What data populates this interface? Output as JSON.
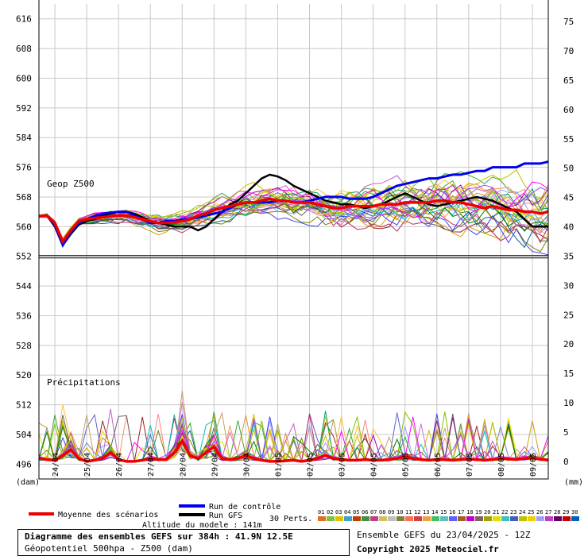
{
  "chart_data": {
    "type": "line",
    "left_axis": {
      "unit": "(dam)",
      "ticks": [
        616,
        608,
        600,
        592,
        584,
        576,
        568,
        560,
        552,
        544,
        536,
        528,
        520,
        512,
        504,
        496
      ],
      "range": [
        492,
        620
      ]
    },
    "right_axis": {
      "unit": "(mm)",
      "ticks": [
        75,
        70,
        65,
        60,
        55,
        50,
        45,
        40,
        35,
        30,
        25,
        20,
        15,
        10,
        5,
        0
      ],
      "range": [
        -3,
        78
      ]
    },
    "x_ticks": [
      "24/04",
      "25/04",
      "26/04",
      "27/04",
      "28/04",
      "29/04",
      "30/04",
      "01/05",
      "02/05",
      "03/05",
      "04/05",
      "05/05",
      "06/05",
      "07/05",
      "08/05",
      "09/05"
    ],
    "x_range_hours": [
      0,
      384
    ],
    "panel_labels": {
      "geop": "Geop Z500",
      "precip": "Précipitations"
    },
    "mean_series": {
      "name": "Moyenne des scénarios",
      "color": "#ee0000",
      "hours": [
        0,
        6,
        12,
        18,
        24,
        30,
        36,
        42,
        48,
        54,
        60,
        66,
        72,
        78,
        84,
        90,
        96,
        102,
        108,
        114,
        120,
        126,
        132,
        138,
        144,
        150,
        156,
        162,
        168,
        174,
        180,
        186,
        192,
        198,
        204,
        210,
        216,
        222,
        228,
        234,
        240,
        246,
        252,
        258,
        264,
        270,
        276,
        282,
        288,
        294,
        300,
        306,
        312,
        318,
        324,
        330,
        336,
        342,
        348,
        354,
        360,
        366,
        372,
        378,
        384
      ],
      "z500": [
        562.8,
        563,
        561,
        556,
        559,
        561.5,
        562,
        562.3,
        562.5,
        562.8,
        563,
        563,
        562.5,
        562,
        561.5,
        561,
        561,
        561.2,
        561.5,
        562,
        563,
        563.5,
        564.5,
        565,
        565.5,
        566,
        566.5,
        566.5,
        567,
        567.5,
        567,
        567,
        566.5,
        566.5,
        566.5,
        566,
        565.5,
        565,
        565,
        565.5,
        565.5,
        565.5,
        565.5,
        566,
        566,
        566,
        566.5,
        566.5,
        566.5,
        566.5,
        567,
        567,
        566.5,
        566.5,
        566,
        565.5,
        565,
        565.5,
        565,
        564.5,
        564.5,
        564,
        564,
        563.5,
        564
      ]
    },
    "control_series": {
      "name": "Run de contrôle",
      "color": "#0000ee",
      "hours": [
        0,
        6,
        12,
        18,
        24,
        30,
        36,
        42,
        48,
        54,
        60,
        66,
        72,
        78,
        84,
        90,
        96,
        102,
        108,
        114,
        120,
        126,
        132,
        138,
        144,
        150,
        156,
        162,
        168,
        174,
        180,
        186,
        192,
        198,
        204,
        210,
        216,
        222,
        228,
        234,
        240,
        246,
        252,
        258,
        264,
        270,
        276,
        282,
        288,
        294,
        300,
        306,
        312,
        318,
        324,
        330,
        336,
        342,
        348,
        354,
        360,
        366,
        372,
        378,
        384
      ],
      "z500": [
        562.8,
        563,
        560.5,
        555,
        558.5,
        561,
        562,
        562.8,
        563.5,
        563.8,
        564,
        564,
        563,
        562,
        561,
        561,
        561.5,
        561.5,
        562,
        562,
        562.5,
        563,
        563.5,
        564,
        565,
        566,
        566.5,
        566.5,
        566.5,
        566.5,
        567,
        567,
        566.5,
        566.5,
        567,
        567.5,
        568,
        568,
        568,
        567.5,
        567.5,
        567.5,
        568,
        569,
        570,
        571,
        571.5,
        572,
        572.5,
        573,
        573,
        573.5,
        574,
        574,
        574.5,
        575,
        575,
        576,
        576,
        576,
        576,
        577,
        577,
        577,
        577.5
      ]
    },
    "gfs_series": {
      "name": "Run GFS",
      "color": "#000000",
      "hours": [
        0,
        6,
        12,
        18,
        24,
        30,
        36,
        42,
        48,
        54,
        60,
        66,
        72,
        78,
        84,
        90,
        96,
        102,
        108,
        114,
        120,
        126,
        132,
        138,
        144,
        150,
        156,
        162,
        168,
        174,
        180,
        186,
        192,
        198,
        204,
        210,
        216,
        222,
        228,
        234,
        240,
        246,
        252,
        258,
        264,
        270,
        276,
        282,
        288,
        294,
        300,
        306,
        312,
        318,
        324,
        330,
        336,
        342,
        348,
        354,
        360,
        366,
        372,
        378,
        384
      ],
      "z500": [
        562.8,
        563,
        560,
        555,
        558,
        560.5,
        561.5,
        562,
        563,
        563.5,
        564,
        564,
        563.5,
        562.5,
        561.5,
        561,
        560.5,
        560,
        560,
        560,
        559,
        560,
        562,
        564,
        566,
        567,
        569,
        571,
        573,
        574,
        573.5,
        572.5,
        571,
        570,
        569,
        568,
        567,
        566.5,
        566,
        566,
        565.5,
        565,
        565.5,
        566,
        567,
        568,
        569,
        568,
        567,
        566,
        565.5,
        566,
        566.5,
        567,
        567.5,
        568,
        567.5,
        567,
        566,
        565,
        564,
        562,
        560,
        560,
        560
      ]
    },
    "precip_mean": {
      "name": "Moyenne des scénarios",
      "hours": [
        0,
        6,
        12,
        18,
        24,
        30,
        36,
        42,
        48,
        54,
        60,
        66,
        72,
        78,
        84,
        90,
        96,
        102,
        108,
        114,
        120,
        126,
        132,
        138,
        144,
        150,
        156,
        162,
        168,
        174,
        180,
        186,
        192,
        198,
        204,
        210,
        216,
        222,
        228,
        234,
        240,
        246,
        252,
        258,
        264,
        270,
        276,
        282,
        288,
        294,
        300,
        306,
        312,
        318,
        324,
        330,
        336,
        342,
        348,
        354,
        360,
        366,
        372,
        378,
        384
      ],
      "mm": [
        0.5,
        0.3,
        0.2,
        1.0,
        2.0,
        0.5,
        0,
        0.2,
        0.5,
        1.5,
        0.3,
        0,
        0,
        0.2,
        0.5,
        0.3,
        0.3,
        1.5,
        3.5,
        1.0,
        0.5,
        1.5,
        2.5,
        0.5,
        0.3,
        0.5,
        1.0,
        0.5,
        0.2,
        0,
        0,
        0.1,
        0.2,
        0,
        0.2,
        0.5,
        1.0,
        0.5,
        0.3,
        0.2,
        0.2,
        0.3,
        0.2,
        0.2,
        0.3,
        0.5,
        0.8,
        0.5,
        0.3,
        0.2,
        0.3,
        0.3,
        0.2,
        0.3,
        0.4,
        0.3,
        0.2,
        0.3,
        0.5,
        0.4,
        0.3,
        0.5,
        0.6,
        0.4,
        0.2
      ]
    },
    "perturbation_colors": [
      "#e0903a",
      "#33aa33",
      "#d0c000",
      "#8080c0",
      "#a02020",
      "#40a040",
      "#6060d0",
      "#c8a060",
      "#a0a0ff",
      "#d0a000",
      "#808000",
      "#ff8080",
      "#ffc040",
      "#00a060",
      "#ff9060",
      "#006080",
      "#4040ff",
      "#c060c0",
      "#a000a0",
      "#b8b800",
      "#606060",
      "#00c0c0",
      "#c03060",
      "#80c000",
      "#e0e000",
      "#a040ff",
      "#008000",
      "#d070d0",
      "#c0c000",
      "#ff00ff"
    ],
    "perturbation_legend": {
      "label": "30 Perts.",
      "numbers": [
        "01",
        "02",
        "03",
        "04",
        "05",
        "06",
        "07",
        "08",
        "09",
        "10",
        "11",
        "12",
        "13",
        "14",
        "15",
        "16",
        "17",
        "18",
        "19",
        "20",
        "21",
        "22",
        "23",
        "24",
        "25",
        "26",
        "27",
        "28",
        "29",
        "30"
      ],
      "swatch_colors": [
        "#e07020",
        "#80c040",
        "#e0c000",
        "#40a0d0",
        "#c04000",
        "#409040",
        "#c04080",
        "#d0c060",
        "#c0c0c0",
        "#808040",
        "#ff7050",
        "#d04040",
        "#f0a040",
        "#40c060",
        "#60c0c0",
        "#6060ff",
        "#a06020",
        "#c000c0",
        "#806060",
        "#a0a000",
        "#e0e000",
        "#40c0c0",
        "#4060c0",
        "#c0c000",
        "#f0d000",
        "#a0a0ff",
        "#c040c0",
        "#600060",
        "#c00000",
        "#0060c0"
      ]
    }
  },
  "legend": {
    "mean": "Moyenne des scénarios",
    "control": "Run de contrôle",
    "gfs": "Run GFS",
    "altitude": "Altitude du modele : 141m"
  },
  "info": {
    "line1": "Diagramme des ensembles GEFS sur 384h : 41.9N 12.5E",
    "line2": "Géopotentiel 500hpa - Z500 (dam)",
    "run": "Ensemble GEFS du 23/04/2025 - 12Z",
    "copyright": "Copyright 2025 Meteociel.fr"
  }
}
